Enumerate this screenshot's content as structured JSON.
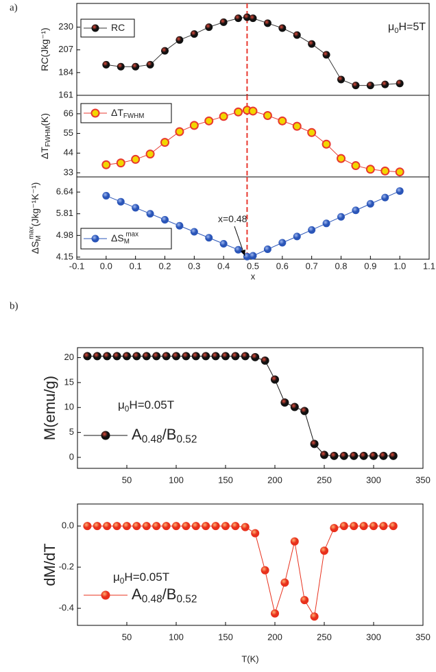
{
  "chart_data": [
    {
      "type": "line",
      "panel_label": "a)",
      "ylabel": [
        "RC(Jkg⁻¹)"
      ],
      "x": [
        0,
        0.05,
        0.1,
        0.15,
        0.2,
        0.25,
        0.3,
        0.35,
        0.4,
        0.45,
        0.48,
        0.5,
        0.55,
        0.6,
        0.65,
        0.7,
        0.75,
        0.8,
        0.85,
        0.9,
        0.95,
        1.0
      ],
      "series": [
        {
          "name": [
            "RC"
          ],
          "color": "#111111",
          "highlight": "#e04a3a",
          "line_color": "#333333",
          "marker": "sphere",
          "values": [
            192,
            190,
            190,
            192,
            206,
            217,
            223,
            230,
            235,
            239,
            240,
            239,
            234,
            229,
            222,
            213,
            202,
            177,
            171,
            171,
            172,
            173
          ]
        }
      ],
      "xlim": [
        -0.1,
        1.1
      ],
      "ylim": [
        161,
        254
      ],
      "yticks": [
        161,
        184,
        207,
        230
      ],
      "annotations": [
        [
          "μ",
          {
            "sub": "0"
          },
          "H=5T"
        ]
      ],
      "vline": {
        "value": 0.48,
        "color": "#e8382f"
      },
      "legend": "upper left"
    },
    {
      "type": "line",
      "ylabel": [
        "ΔT",
        {
          "sub": "FWHM"
        },
        "(K)"
      ],
      "x": [
        0,
        0.05,
        0.1,
        0.15,
        0.2,
        0.25,
        0.3,
        0.35,
        0.4,
        0.45,
        0.48,
        0.5,
        0.55,
        0.6,
        0.65,
        0.7,
        0.75,
        0.8,
        0.85,
        0.9,
        0.95,
        1.0
      ],
      "series": [
        {
          "name": [
            "ΔT",
            {
              "sub": "FWHM"
            }
          ],
          "color": "#e8382f",
          "marker_fill": "#f2d600",
          "line_color": "#e8382f",
          "marker": "ring",
          "values": [
            37.5,
            38.5,
            40.5,
            43.5,
            50,
            56,
            59.5,
            62,
            64.5,
            67,
            68,
            67.5,
            65,
            62,
            59,
            55.5,
            49,
            41,
            37,
            35,
            34,
            33.5
          ]
        }
      ],
      "xlim": [
        -0.1,
        1.1
      ],
      "ylim": [
        30.7,
        76.3
      ],
      "yticks": [
        33,
        44,
        55,
        66
      ],
      "vline": {
        "value": 0.48,
        "color": "#e8382f"
      },
      "legend": "upper left"
    },
    {
      "type": "line",
      "ylabel": [
        "ΔS",
        {
          "sub": "M"
        },
        {
          "sup": "max"
        },
        "(Jkg⁻¹K⁻¹)"
      ],
      "xlabel": "x",
      "x": [
        0,
        0.05,
        0.1,
        0.15,
        0.2,
        0.25,
        0.3,
        0.35,
        0.4,
        0.45,
        0.48,
        0.5,
        0.55,
        0.6,
        0.65,
        0.7,
        0.75,
        0.8,
        0.85,
        0.9,
        0.95,
        1.0
      ],
      "series": [
        {
          "name": [
            "ΔS",
            {
              "sub": "M"
            },
            {
              "sup": "max"
            }
          ],
          "color": "#2a55b8",
          "highlight": "#9fb8f0",
          "line_color": "#2a55b8",
          "marker": "sphere",
          "values": [
            6.5,
            6.27,
            6.04,
            5.81,
            5.58,
            5.35,
            5.12,
            4.89,
            4.66,
            4.43,
            4.17,
            4.2,
            4.45,
            4.7,
            4.94,
            5.19,
            5.44,
            5.69,
            5.94,
            6.19,
            6.43,
            6.68
          ]
        }
      ],
      "xlim": [
        -0.1,
        1.1
      ],
      "xticks": [
        -0.1,
        {
          "value": 0,
          "label": "0.0"
        },
        0.1,
        0.2,
        0.3,
        0.4,
        0.5,
        0.6,
        0.7,
        0.8,
        0.9,
        {
          "value": 1,
          "label": "1.0"
        },
        1.1
      ],
      "ylim": [
        4.07,
        7.22
      ],
      "yticks": [
        4.15,
        4.98,
        5.81,
        6.64
      ],
      "annotations": [
        [
          "x=0.48"
        ]
      ],
      "vline": {
        "value": 0.48,
        "color": "#e8382f"
      },
      "legend": "lower left"
    },
    {
      "type": "line",
      "panel_label": "b)",
      "ylabel": [
        "M(emu/g)"
      ],
      "x": [
        10,
        20,
        30,
        40,
        50,
        60,
        70,
        80,
        90,
        100,
        110,
        120,
        130,
        140,
        150,
        160,
        170,
        180,
        190,
        200,
        210,
        220,
        230,
        240,
        250,
        260,
        270,
        280,
        290,
        300,
        310,
        320
      ],
      "series": [
        {
          "name": [
            "A",
            {
              "sub": "0.48"
            },
            "/B",
            {
              "sub": "0.52"
            }
          ],
          "color": "#111111",
          "highlight": "#e04a3a",
          "line_color": "#111111",
          "marker": "sphere",
          "values": [
            20.3,
            20.3,
            20.3,
            20.3,
            20.3,
            20.3,
            20.3,
            20.3,
            20.3,
            20.3,
            20.3,
            20.3,
            20.3,
            20.3,
            20.3,
            20.3,
            20.3,
            20.1,
            19.4,
            15.6,
            11,
            10.1,
            9.3,
            2.7,
            0.5,
            0.3,
            0.3,
            0.3,
            0.3,
            0.3,
            0.3,
            0.3
          ]
        }
      ],
      "xlim": [
        0,
        350
      ],
      "xticks": [
        50,
        100,
        150,
        200,
        250,
        300,
        350
      ],
      "ylim": [
        -2.2,
        22
      ],
      "yticks": [
        0,
        5,
        10,
        15,
        20
      ],
      "annotations": [
        [
          "μ",
          {
            "sub": "0"
          },
          "H=0.05T"
        ]
      ],
      "legend": "center left"
    },
    {
      "type": "line",
      "ylabel": [
        "dM/dT"
      ],
      "xlabel": "T(K)",
      "x": [
        10,
        20,
        30,
        40,
        50,
        60,
        70,
        80,
        90,
        100,
        110,
        120,
        130,
        140,
        150,
        160,
        170,
        180,
        190,
        200,
        210,
        220,
        230,
        240,
        250,
        260,
        270,
        280,
        290,
        300,
        310,
        320
      ],
      "series": [
        {
          "name": [
            "A",
            {
              "sub": "0.48"
            },
            "/B",
            {
              "sub": "0.52"
            }
          ],
          "color": "#e8301c",
          "highlight": "#ffb070",
          "line_color": "#e8301c",
          "marker": "sphere",
          "values": [
            0,
            0,
            0,
            0,
            0,
            0,
            0,
            0,
            0,
            0,
            0,
            0,
            0,
            0,
            0,
            0,
            -0.005,
            -0.035,
            -0.215,
            -0.425,
            -0.275,
            -0.075,
            -0.36,
            -0.44,
            -0.12,
            -0.01,
            0,
            0,
            0,
            0,
            0,
            0
          ]
        }
      ],
      "xlim": [
        0,
        350
      ],
      "xticks": [
        50,
        100,
        150,
        200,
        250,
        300,
        350
      ],
      "ylim": [
        -0.483,
        0.107
      ],
      "yticks": [
        -0.4,
        -0.2,
        {
          "value": 0,
          "label": "0.0"
        }
      ],
      "annotations": [
        [
          "μ",
          {
            "sub": "0"
          },
          "H=0.05T"
        ]
      ],
      "legend": "lower left"
    }
  ]
}
